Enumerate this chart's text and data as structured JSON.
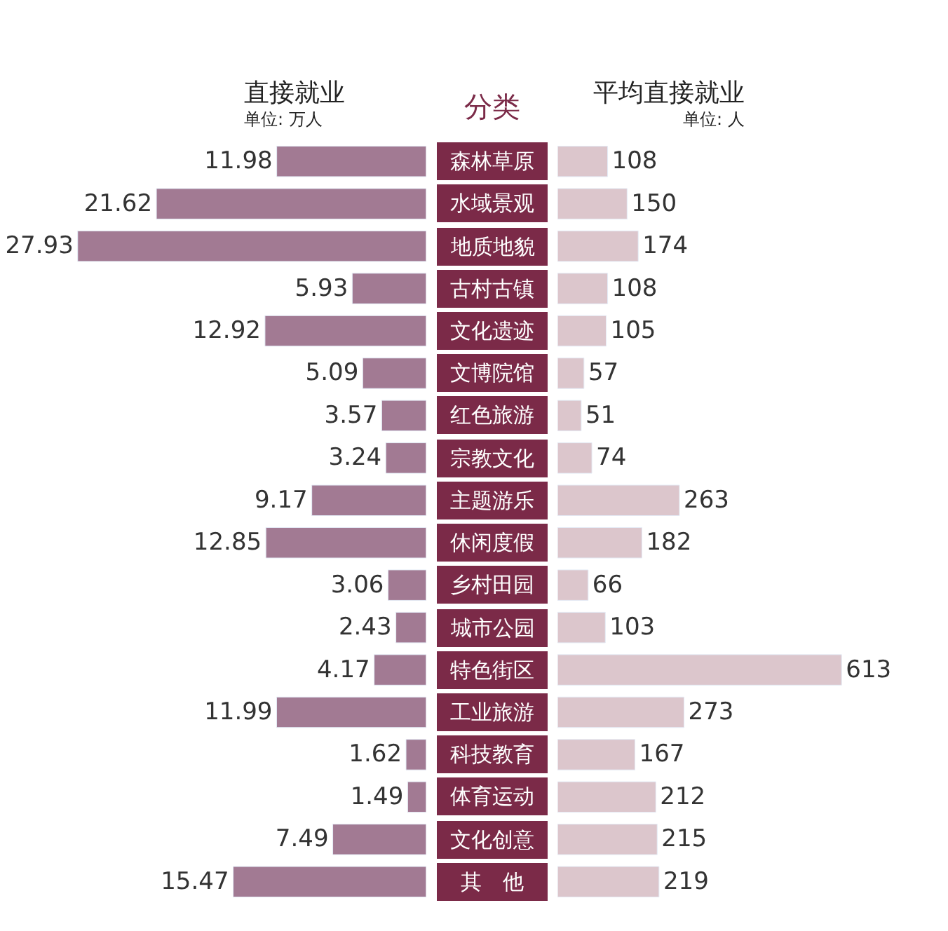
{
  "chart_data": [
    {
      "type": "bar",
      "orientation": "horizontal",
      "title": "直接就业",
      "subtitle": "单位: 万人",
      "ylabel": "分类",
      "tick_labels": "y",
      "data_labels": true,
      "color": "#a27a93",
      "categories": [
        "森林草原",
        "水域景观",
        "地质地貌",
        "古村古镇",
        "文化遗迹",
        "文博院馆",
        "红色旅游",
        "宗教文化",
        "主题游乐",
        "休闲度假",
        "乡村田园",
        "城市公园",
        "特色街区",
        "工业旅游",
        "科技教育",
        "体育运动",
        "文化创意",
        "其　他"
      ],
      "values": [
        11.98,
        21.62,
        27.93,
        5.93,
        12.92,
        5.09,
        3.57,
        3.24,
        9.17,
        12.85,
        3.06,
        2.43,
        4.17,
        11.99,
        1.62,
        1.49,
        7.49,
        15.47
      ]
    },
    {
      "type": "bar",
      "orientation": "horizontal",
      "title": "平均直接就业",
      "subtitle": "单位: 人",
      "tick_labels": false,
      "data_labels": true,
      "color": "#dcc6cc",
      "categories": [
        "森林草原",
        "水域景观",
        "地质地貌",
        "古村古镇",
        "文化遗迹",
        "文博院馆",
        "红色旅游",
        "宗教文化",
        "主题游乐",
        "休闲度假",
        "乡村田园",
        "城市公园",
        "特色街区",
        "工业旅游",
        "科技教育",
        "体育运动",
        "文化创意",
        "其　他"
      ],
      "values": [
        108,
        150,
        174,
        108,
        105,
        57,
        51,
        74,
        263,
        182,
        66,
        103,
        613,
        273,
        167,
        212,
        215,
        219
      ]
    }
  ]
}
